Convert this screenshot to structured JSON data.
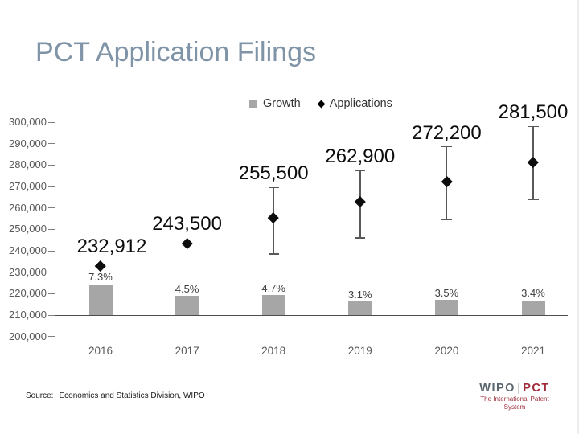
{
  "title": "PCT Application Filings",
  "source": {
    "label": "Source:",
    "text": "Economics and Statistics Division, WIPO"
  },
  "logo": {
    "wipo": "WIPO",
    "separator": "|",
    "pct": "PCT",
    "tagline": "The International Patent System"
  },
  "colors": {
    "title": "#8094a8",
    "bar": "#a6a6a6",
    "bar_label": "#404040",
    "axis_text": "#595959",
    "marker": "#000000",
    "logo_wipo_gray": "#5b6670",
    "logo_pct_red": "#9e2a3a"
  },
  "chart_data": {
    "type": "bar",
    "subtype": "combo bar + diamond markers with error bars",
    "title": "PCT Application Filings",
    "categories": [
      "2016",
      "2017",
      "2018",
      "2019",
      "2020",
      "2021"
    ],
    "legend": [
      "Growth",
      "Applications"
    ],
    "legend_position": "top",
    "grid": false,
    "y_axis": {
      "min": 200000,
      "max": 300000,
      "tick_step": 10000,
      "tick_labels": [
        "300,000",
        "290,000",
        "280,000",
        "270,000",
        "260,000",
        "250,000",
        "240,000",
        "230,000",
        "220,000",
        "210,000",
        "200,000"
      ]
    },
    "baseline_value": 210000,
    "series": [
      {
        "name": "Growth",
        "type": "bar",
        "unit": "%",
        "axis": "secondary",
        "values": [
          7.3,
          4.5,
          4.7,
          3.1,
          3.5,
          3.4
        ],
        "labels": [
          "7.3%",
          "4.5%",
          "4.7%",
          "3.1%",
          "3.5%",
          "3.4%"
        ],
        "color": "#a6a6a6"
      },
      {
        "name": "Applications",
        "type": "scatter",
        "marker": "diamond",
        "values": [
          232912,
          243500,
          255500,
          262900,
          272200,
          281500
        ],
        "labels": [
          "232,912",
          "243,500",
          "255,500",
          "262,900",
          "272,200",
          "281,500"
        ],
        "error_low": [
          null,
          null,
          238500,
          246000,
          254500,
          264000
        ],
        "error_high": [
          null,
          null,
          269500,
          277500,
          288500,
          298000
        ],
        "label_offsets_x": [
          14,
          0,
          0,
          0,
          0,
          0
        ],
        "color": "#000000"
      }
    ]
  }
}
